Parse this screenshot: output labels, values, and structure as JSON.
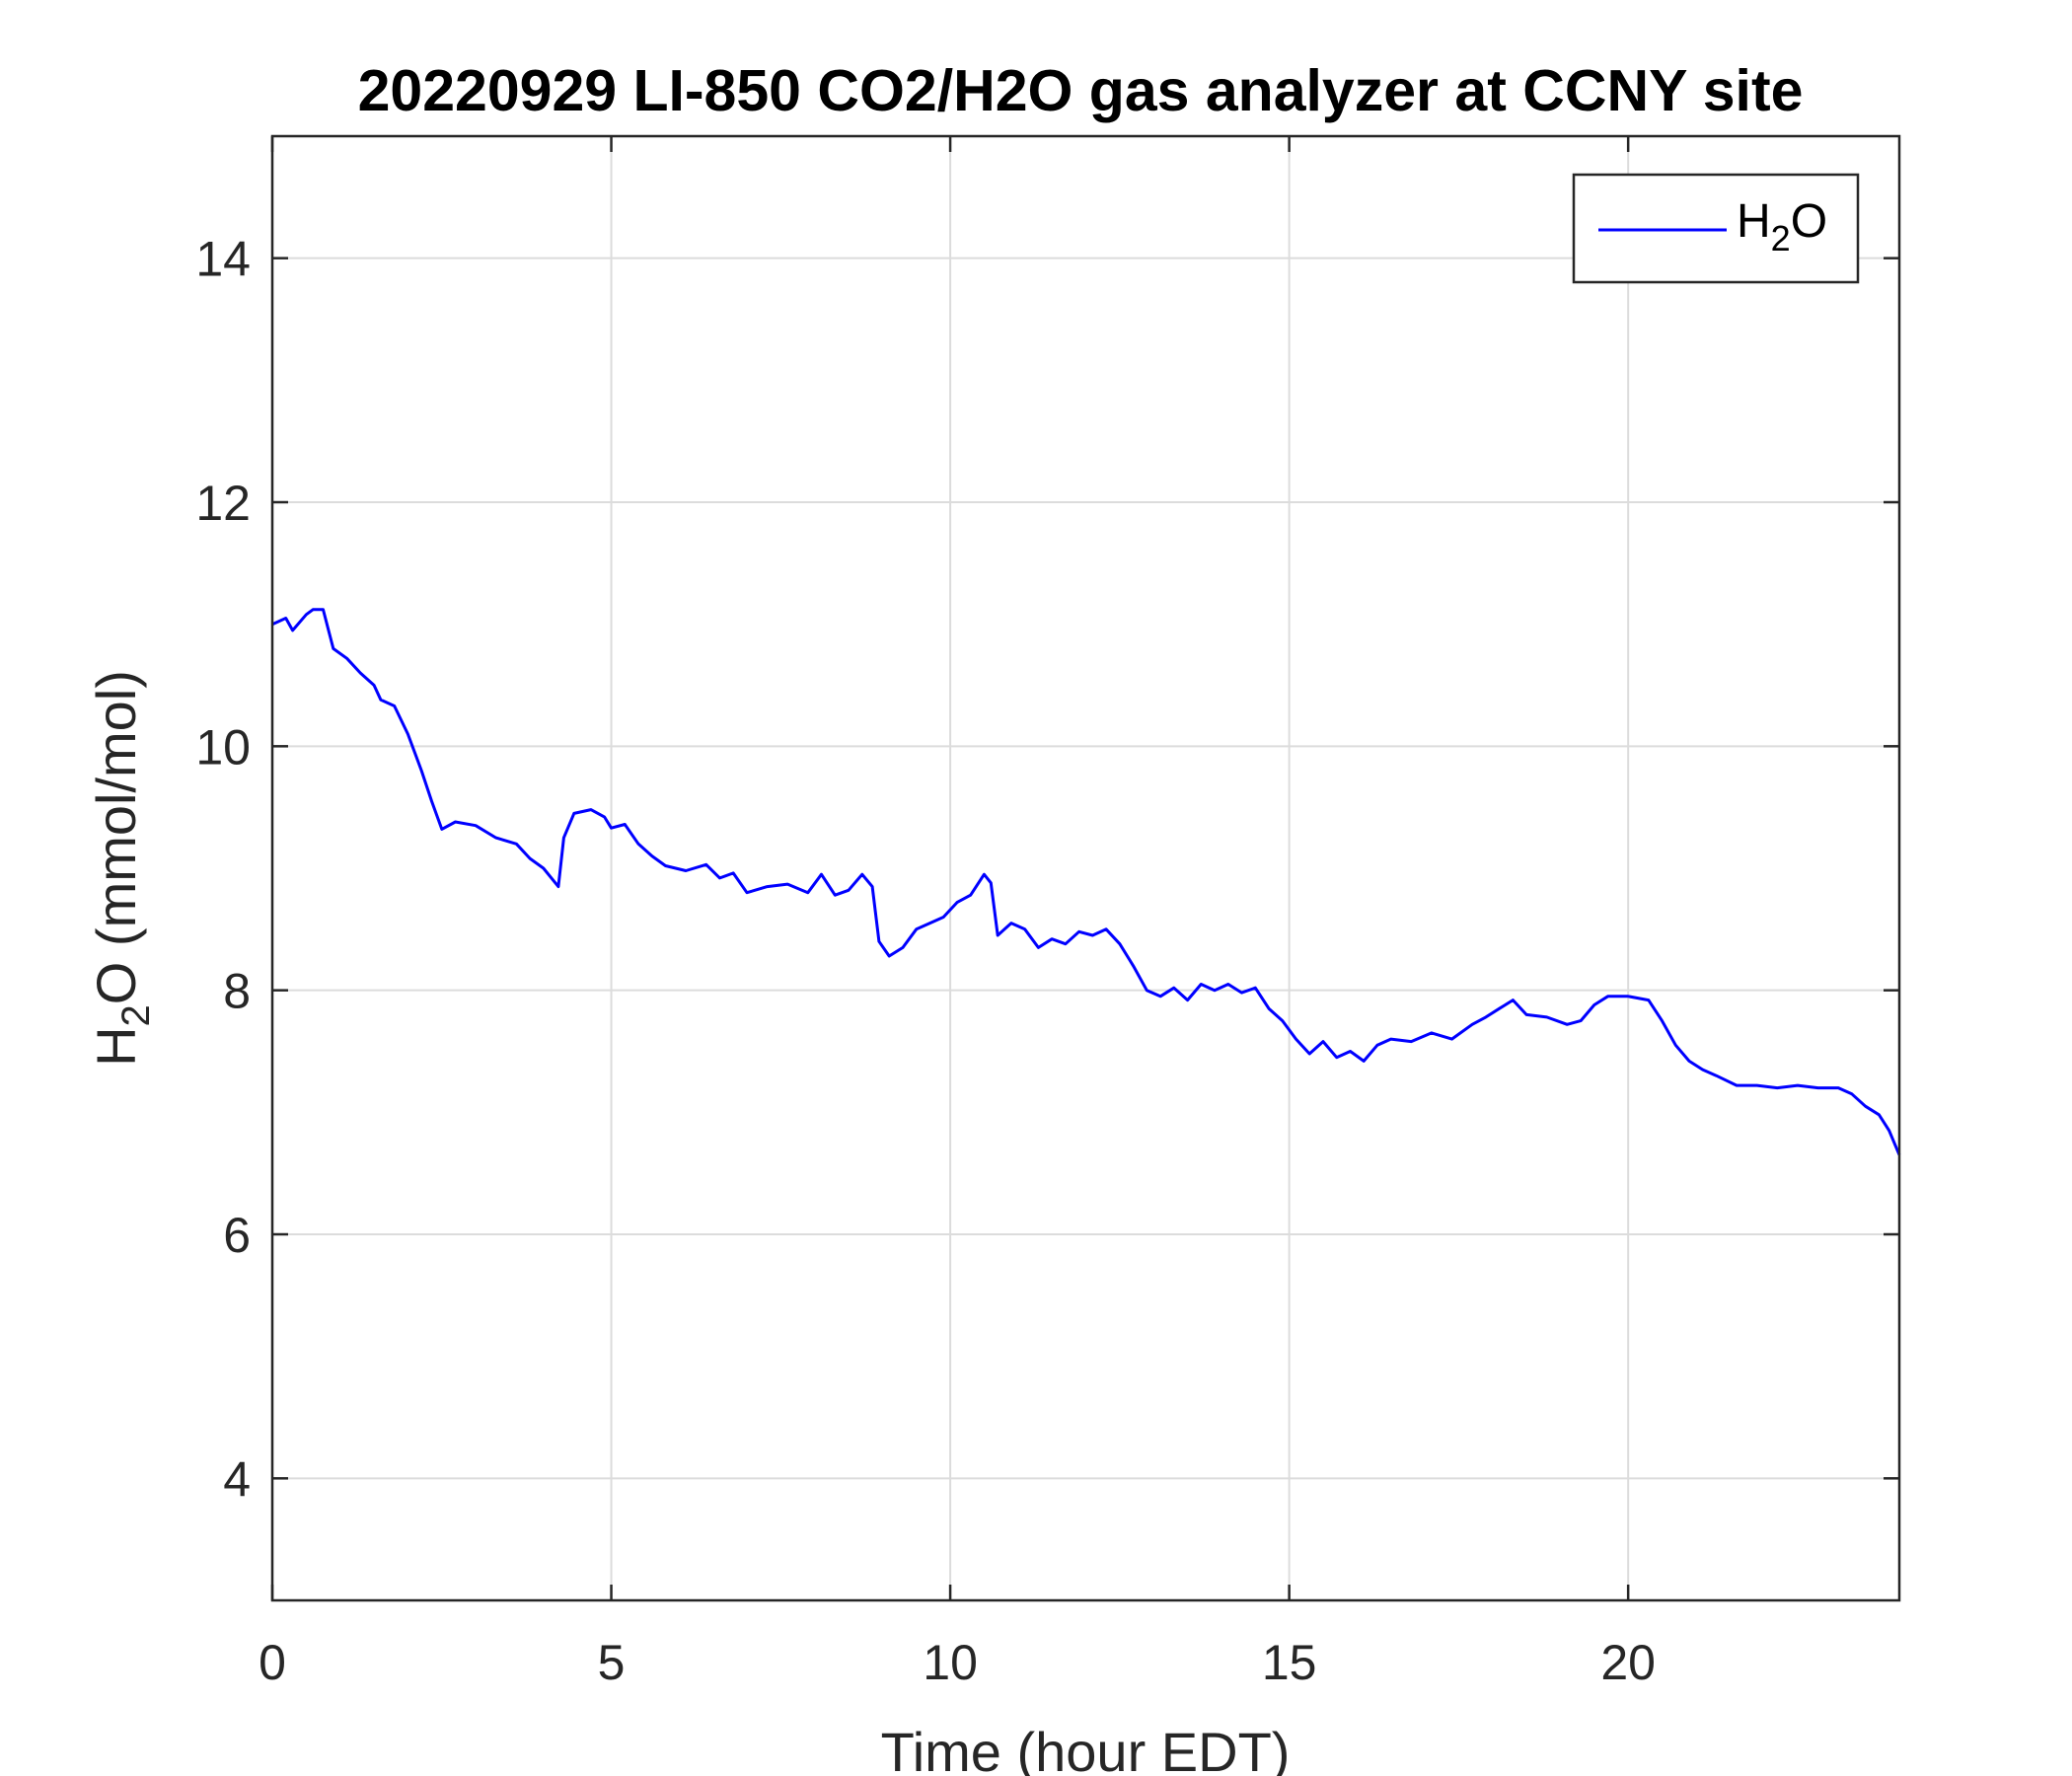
{
  "chart_data": {
    "type": "line",
    "title": "20220929 LI-850 CO2/H2O gas analyzer at CCNY site",
    "xlabel": "Time (hour EDT)",
    "ylabel": {
      "main": "H",
      "sub": "2",
      "rest": "O (mmol/mol)"
    },
    "xlim": [
      0,
      24
    ],
    "ylim": [
      3,
      15
    ],
    "xticks": [
      0,
      5,
      10,
      15,
      20
    ],
    "yticks": [
      4,
      6,
      8,
      10,
      12,
      14
    ],
    "grid": true,
    "legend_position": "top-right",
    "series": [
      {
        "name": {
          "main": "H",
          "sub": "2",
          "rest": "O"
        },
        "color": "#0000ff",
        "points": [
          [
            0.0,
            11.0
          ],
          [
            0.2,
            11.05
          ],
          [
            0.3,
            10.95
          ],
          [
            0.5,
            11.08
          ],
          [
            0.6,
            11.12
          ],
          [
            0.75,
            11.12
          ],
          [
            0.9,
            10.8
          ],
          [
            1.1,
            10.72
          ],
          [
            1.3,
            10.6
          ],
          [
            1.5,
            10.5
          ],
          [
            1.6,
            10.38
          ],
          [
            1.8,
            10.33
          ],
          [
            2.0,
            10.1
          ],
          [
            2.2,
            9.8
          ],
          [
            2.35,
            9.55
          ],
          [
            2.5,
            9.32
          ],
          [
            2.7,
            9.38
          ],
          [
            3.0,
            9.35
          ],
          [
            3.3,
            9.25
          ],
          [
            3.6,
            9.2
          ],
          [
            3.8,
            9.08
          ],
          [
            4.0,
            9.0
          ],
          [
            4.22,
            8.85
          ],
          [
            4.3,
            9.25
          ],
          [
            4.45,
            9.45
          ],
          [
            4.7,
            9.48
          ],
          [
            4.9,
            9.42
          ],
          [
            5.0,
            9.33
          ],
          [
            5.2,
            9.36
          ],
          [
            5.4,
            9.2
          ],
          [
            5.6,
            9.1
          ],
          [
            5.8,
            9.02
          ],
          [
            6.1,
            8.98
          ],
          [
            6.4,
            9.03
          ],
          [
            6.6,
            8.92
          ],
          [
            6.8,
            8.96
          ],
          [
            7.0,
            8.8
          ],
          [
            7.3,
            8.85
          ],
          [
            7.6,
            8.87
          ],
          [
            7.9,
            8.8
          ],
          [
            8.1,
            8.95
          ],
          [
            8.3,
            8.78
          ],
          [
            8.5,
            8.82
          ],
          [
            8.7,
            8.95
          ],
          [
            8.85,
            8.85
          ],
          [
            8.95,
            8.4
          ],
          [
            9.1,
            8.28
          ],
          [
            9.3,
            8.35
          ],
          [
            9.5,
            8.5
          ],
          [
            9.7,
            8.55
          ],
          [
            9.9,
            8.6
          ],
          [
            10.1,
            8.72
          ],
          [
            10.3,
            8.78
          ],
          [
            10.5,
            8.95
          ],
          [
            10.6,
            8.88
          ],
          [
            10.7,
            8.45
          ],
          [
            10.9,
            8.55
          ],
          [
            11.1,
            8.5
          ],
          [
            11.3,
            8.35
          ],
          [
            11.5,
            8.42
          ],
          [
            11.7,
            8.38
          ],
          [
            11.9,
            8.48
          ],
          [
            12.1,
            8.45
          ],
          [
            12.3,
            8.5
          ],
          [
            12.5,
            8.38
          ],
          [
            12.7,
            8.2
          ],
          [
            12.9,
            8.0
          ],
          [
            13.1,
            7.95
          ],
          [
            13.3,
            8.02
          ],
          [
            13.5,
            7.92
          ],
          [
            13.7,
            8.05
          ],
          [
            13.9,
            8.0
          ],
          [
            14.1,
            8.05
          ],
          [
            14.3,
            7.98
          ],
          [
            14.5,
            8.02
          ],
          [
            14.7,
            7.85
          ],
          [
            14.9,
            7.75
          ],
          [
            15.1,
            7.6
          ],
          [
            15.3,
            7.48
          ],
          [
            15.5,
            7.58
          ],
          [
            15.7,
            7.45
          ],
          [
            15.9,
            7.5
          ],
          [
            16.1,
            7.42
          ],
          [
            16.3,
            7.55
          ],
          [
            16.5,
            7.6
          ],
          [
            16.8,
            7.58
          ],
          [
            17.1,
            7.65
          ],
          [
            17.4,
            7.6
          ],
          [
            17.7,
            7.72
          ],
          [
            17.9,
            7.78
          ],
          [
            18.1,
            7.85
          ],
          [
            18.3,
            7.92
          ],
          [
            18.5,
            7.8
          ],
          [
            18.8,
            7.78
          ],
          [
            19.1,
            7.72
          ],
          [
            19.3,
            7.75
          ],
          [
            19.5,
            7.88
          ],
          [
            19.7,
            7.95
          ],
          [
            20.0,
            7.95
          ],
          [
            20.3,
            7.92
          ],
          [
            20.5,
            7.75
          ],
          [
            20.7,
            7.55
          ],
          [
            20.9,
            7.42
          ],
          [
            21.1,
            7.35
          ],
          [
            21.3,
            7.3
          ],
          [
            21.6,
            7.22
          ],
          [
            21.9,
            7.22
          ],
          [
            22.2,
            7.2
          ],
          [
            22.5,
            7.22
          ],
          [
            22.8,
            7.2
          ],
          [
            23.1,
            7.2
          ],
          [
            23.3,
            7.15
          ],
          [
            23.5,
            7.05
          ],
          [
            23.7,
            6.98
          ],
          [
            23.85,
            6.85
          ],
          [
            24.0,
            6.65
          ]
        ]
      }
    ]
  }
}
